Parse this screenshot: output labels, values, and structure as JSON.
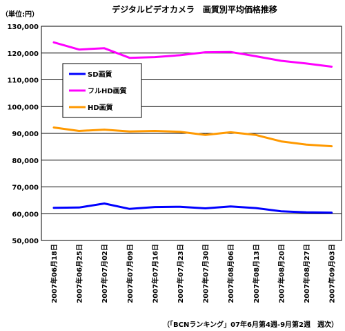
{
  "chart_data": {
    "type": "line",
    "title": "デジタルビデオカメラ　画質別平均価格推移",
    "unit_label": "（単位:円）",
    "source": "（「BCNランキング」07年6月第4週-9月第2週　週次）",
    "ylim": [
      50000,
      130000
    ],
    "y_ticks": [
      "50,000",
      "60,000",
      "70,000",
      "80,000",
      "90,000",
      "100,000",
      "110,000",
      "120,000",
      "130,000"
    ],
    "y_tick_values": [
      50000,
      60000,
      70000,
      80000,
      90000,
      100000,
      110000,
      120000,
      130000
    ],
    "grid": true,
    "legend_position": "upper-left",
    "plot_bg": "#ffffff",
    "categories": [
      "2007年06月18日",
      "2007年06月25日",
      "2007年07月02日",
      "2007年07月09日",
      "2007年07月16日",
      "2007年07月23日",
      "2007年07月30日",
      "2007年08月06日",
      "2007年08月13日",
      "2007年08月20日",
      "2007年08月27日",
      "2007年09月03日"
    ],
    "series": [
      {
        "name": "SD画質",
        "color": "#0000ff",
        "values": [
          62200,
          62300,
          63800,
          61800,
          62500,
          62600,
          62000,
          62700,
          62100,
          60900,
          60500,
          60400
        ]
      },
      {
        "name": "フルHD画質",
        "color": "#ff00ff",
        "values": [
          124000,
          121300,
          121800,
          118200,
          118500,
          119200,
          120300,
          120400,
          118800,
          117100,
          116100,
          114900
        ]
      },
      {
        "name": "HD画質",
        "color": "#ff9900",
        "values": [
          92200,
          90900,
          91400,
          90700,
          90900,
          90600,
          89400,
          90400,
          89400,
          87000,
          85800,
          85200
        ]
      }
    ]
  }
}
